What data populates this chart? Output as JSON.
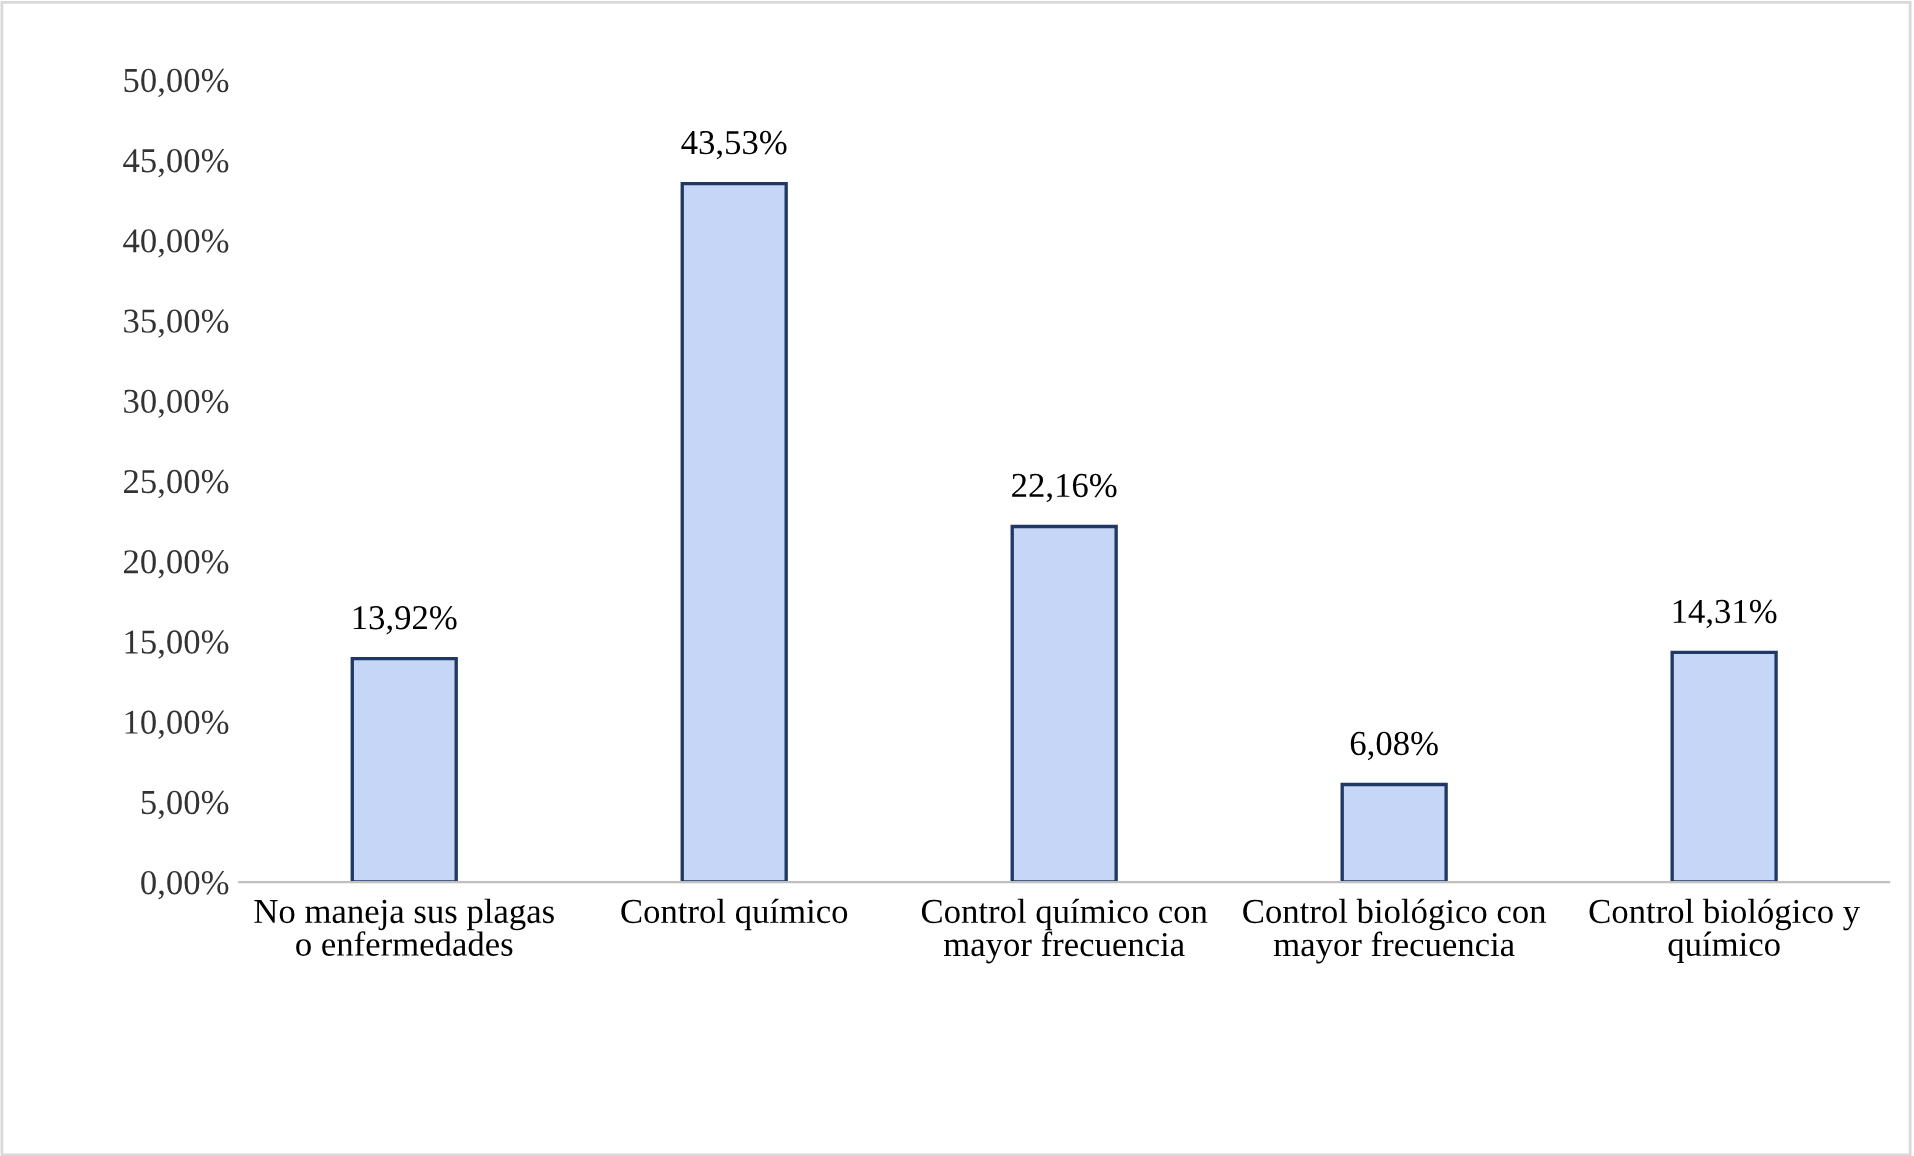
{
  "chart_data": {
    "type": "bar",
    "categories": [
      "No maneja sus plagas o enfermedades",
      "Control químico",
      "Control químico con mayor frecuencia",
      "Control biológico con mayor frecuencia",
      "Control biológico y químico"
    ],
    "values": [
      13.92,
      43.53,
      22.16,
      6.08,
      14.31
    ],
    "value_labels": [
      "13,92%",
      "43,53%",
      "22,16%",
      "6,08%",
      "14,31%"
    ],
    "color": "#c6d6f6",
    "ylim": [
      0,
      50
    ],
    "yticks": [
      {
        "value": 0,
        "label": "0,00%"
      },
      {
        "value": 5,
        "label": "5,00%"
      },
      {
        "value": 10,
        "label": "10,00%"
      },
      {
        "value": 15,
        "label": "15,00%"
      },
      {
        "value": 20,
        "label": "20,00%"
      },
      {
        "value": 25,
        "label": "25,00%"
      },
      {
        "value": 30,
        "label": "30,00%"
      },
      {
        "value": 35,
        "label": "35,00%"
      },
      {
        "value": 40,
        "label": "40,00%"
      },
      {
        "value": 45,
        "label": "45,00%"
      },
      {
        "value": 50,
        "label": "50,00%"
      }
    ],
    "grid": false,
    "legend": false
  }
}
